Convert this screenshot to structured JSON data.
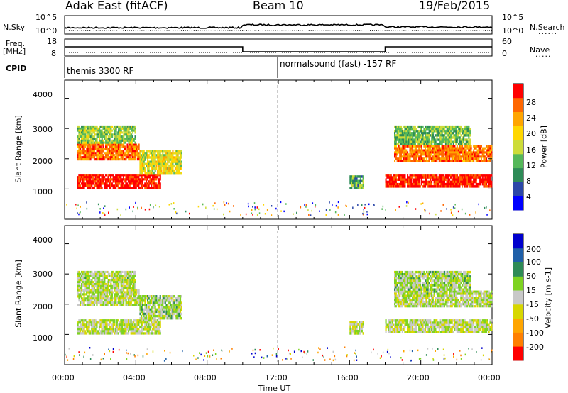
{
  "header": {
    "site": "Adak East (fitACF)",
    "beam": "Beam 10",
    "date": "19/Feb/2015"
  },
  "panels": {
    "nsky": {
      "label": "N.Sky",
      "ticks": [
        "10^5",
        "10^0"
      ]
    },
    "nsearch": {
      "label": "N.Search",
      "ticks": [
        "10^5",
        "10^0"
      ]
    },
    "freq": {
      "label_line1": "Freq.",
      "label_line2": "[MHz]",
      "ticks": [
        "18",
        "8"
      ]
    },
    "nave": {
      "label": "Nave",
      "ticks": [
        "60",
        "0"
      ]
    },
    "cpid": {
      "label": "CPID",
      "segments": [
        "themis 3300 RF",
        "normalsound (fast) -157 RF"
      ]
    }
  },
  "time_ticks": [
    "00:00",
    "04:00",
    "08:00",
    "12:00",
    "16:00",
    "20:00",
    "00:00"
  ],
  "xlabel": "Time UT",
  "colors": {
    "power": [
      "#0000ff",
      "#2b47a8",
      "#2e8b57",
      "#55b85a",
      "#cddc39",
      "#ffd700",
      "#ffa500",
      "#ff6600",
      "#ff0000"
    ],
    "velocity": [
      "#ff0000",
      "#ff7f00",
      "#ffa500",
      "#d7d700",
      "#c8c8c8",
      "#7ed321",
      "#2e8b57",
      "#1f5fa8",
      "#0000cd"
    ]
  },
  "chart_data": [
    {
      "type": "heatmap",
      "parameter": "power",
      "ylabel": "Slant Range [km]",
      "yticks": [
        "1000",
        "2000",
        "3000",
        "4000"
      ],
      "ylim": [
        0,
        4600
      ],
      "xlim": [
        0,
        24
      ],
      "colorbar_label": "Power [dB]",
      "colorbar_range": [
        0,
        32
      ],
      "colorbar_ticks": [
        "4",
        "8",
        "12",
        "16",
        "20",
        "24",
        "28"
      ],
      "regions": [
        {
          "t": [
            0.7,
            5.4
          ],
          "r": [
            1000,
            1500
          ],
          "level": 0.95
        },
        {
          "t": [
            0.7,
            4.2
          ],
          "r": [
            1950,
            2500
          ],
          "level": 0.8
        },
        {
          "t": [
            0.7,
            4.0
          ],
          "r": [
            2500,
            3100
          ],
          "level": 0.45
        },
        {
          "t": [
            4.2,
            6.6
          ],
          "r": [
            1500,
            2300
          ],
          "level": 0.55
        },
        {
          "t": [
            18.0,
            24.0
          ],
          "r": [
            1050,
            1500
          ],
          "level": 0.95
        },
        {
          "t": [
            18.5,
            24.0
          ],
          "r": [
            1900,
            2450
          ],
          "level": 0.8
        },
        {
          "t": [
            18.5,
            22.8
          ],
          "r": [
            2450,
            3100
          ],
          "level": 0.4
        },
        {
          "t": [
            16.0,
            16.8
          ],
          "r": [
            1000,
            1450
          ],
          "level": 0.35
        }
      ]
    },
    {
      "type": "heatmap",
      "parameter": "velocity",
      "ylabel": "Slant Range [km]",
      "yticks": [
        "1000",
        "2000",
        "3000",
        "4000"
      ],
      "ylim": [
        0,
        4600
      ],
      "xlim": [
        0,
        24
      ],
      "colorbar_label": "Velocity [m s-1]",
      "colorbar_range": [
        -250,
        250
      ],
      "colorbar_ticks": [
        "-200",
        "-100",
        "-50",
        "-15",
        "15",
        "50",
        "100",
        "200"
      ],
      "regions": [
        {
          "t": [
            0.7,
            5.4
          ],
          "r": [
            1000,
            1500
          ],
          "level": 0.5
        },
        {
          "t": [
            0.7,
            4.2
          ],
          "r": [
            1950,
            2500
          ],
          "level": 0.5
        },
        {
          "t": [
            0.7,
            4.0
          ],
          "r": [
            2500,
            3100
          ],
          "level": 0.52
        },
        {
          "t": [
            4.2,
            6.6
          ],
          "r": [
            1500,
            2300
          ],
          "level": 0.55
        },
        {
          "t": [
            18.0,
            24.0
          ],
          "r": [
            1050,
            1500
          ],
          "level": 0.5
        },
        {
          "t": [
            18.5,
            24.0
          ],
          "r": [
            1900,
            2450
          ],
          "level": 0.52
        },
        {
          "t": [
            18.5,
            22.8
          ],
          "r": [
            2450,
            3100
          ],
          "level": 0.55
        },
        {
          "t": [
            16.0,
            16.8
          ],
          "r": [
            1000,
            1450
          ],
          "level": 0.5
        }
      ]
    }
  ]
}
